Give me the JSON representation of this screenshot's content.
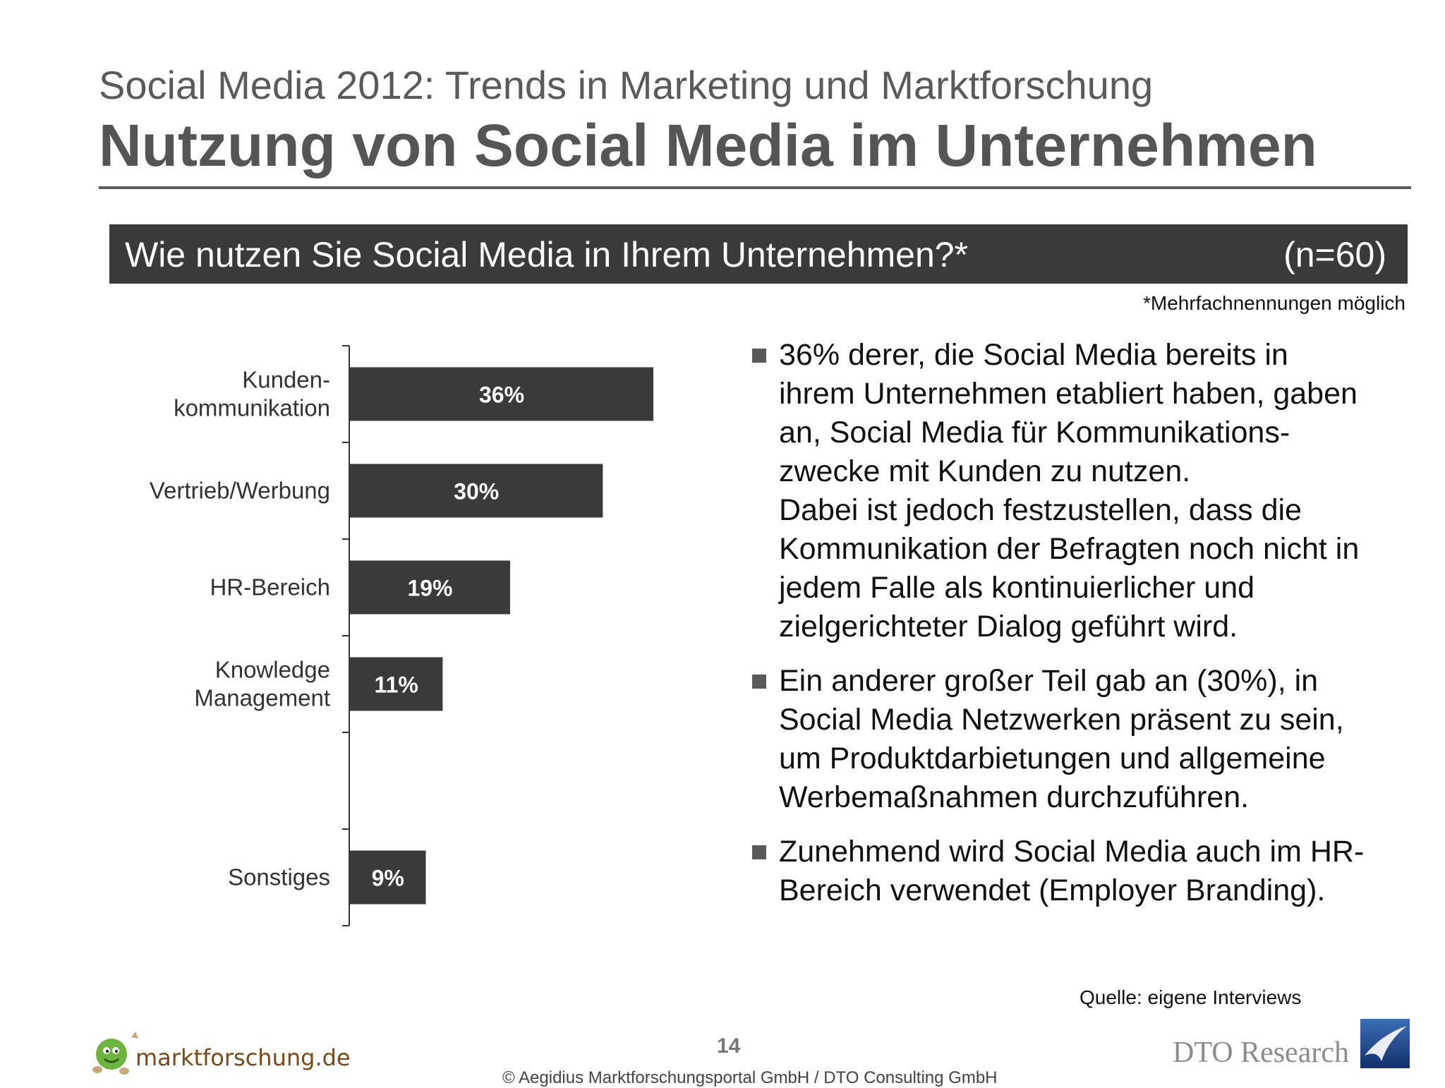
{
  "header": {
    "supertitle": "Social Media 2012: Trends in Marketing und Marktforschung",
    "title": "Nutzung von Social Media im Unternehmen"
  },
  "question": {
    "text": "Wie nutzen Sie Social Media in Ihrem Unternehmen?*",
    "n": "(n=60)",
    "footnote": "*Mehrfachnennungen möglich"
  },
  "chart_data": {
    "type": "bar",
    "orientation": "horizontal",
    "categories": [
      [
        "Kunden-",
        "kommunikation"
      ],
      [
        "Vertrieb/Werbung"
      ],
      [
        "HR-Bereich"
      ],
      [
        "Knowledge",
        "Management"
      ],
      [],
      [
        "Sonstiges"
      ]
    ],
    "values": [
      36,
      30,
      19,
      11,
      null,
      9
    ],
    "value_labels": [
      "36%",
      "30%",
      "19%",
      "11%",
      "",
      "9%"
    ],
    "unit": "%",
    "xlim": [
      0,
      40
    ],
    "bar_color": "#3a3a3a",
    "grid": false
  },
  "bullets": [
    [
      "36% derer, die Social Media bereits in",
      "ihrem Unternehmen etabliert haben, gaben",
      "an, Social Media für Kommunikations-",
      "zwecke mit Kunden zu nutzen.",
      "Dabei ist jedoch festzustellen, dass die",
      "Kommunikation der Befragten noch nicht in",
      "jedem Falle als kontinuierlicher und",
      "zielgerichteter Dialog geführt wird."
    ],
    [
      "Ein anderer großer Teil gab an (30%), in",
      "Social Media Netzwerken präsent zu sein,",
      "um Produktdarbietungen und allgemeine",
      "Werbemaßnahmen durchzuführen."
    ],
    [
      "Zunehmend wird Social Media auch im HR-",
      "Bereich verwendet (Employer Branding)."
    ]
  ],
  "footer": {
    "source": "Quelle: eigene Interviews",
    "page_number": "14",
    "copyright": "© Aegidius Marktforschungsportal GmbH / DTO Consulting GmbH",
    "logo_left": "marktforschung.de",
    "logo_right": "DTO Research"
  }
}
